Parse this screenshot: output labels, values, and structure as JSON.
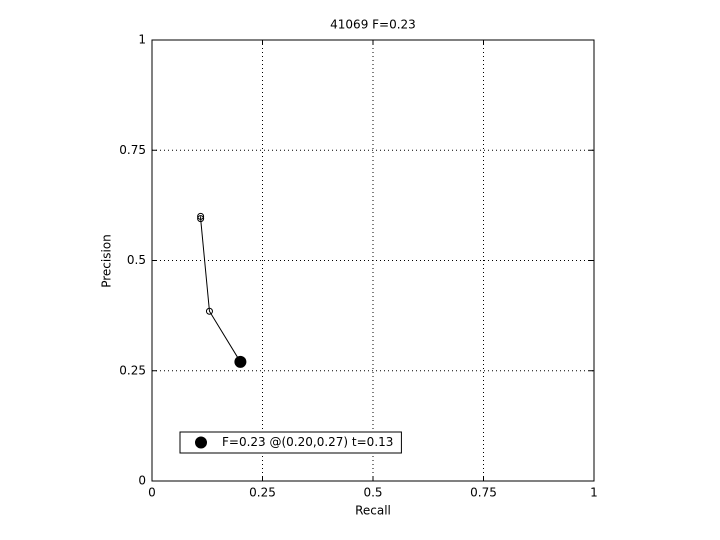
{
  "chart_data": {
    "type": "line",
    "title": "41069 F=0.23",
    "x_label": "Recall",
    "y_label": "Precision",
    "xlim": [
      0,
      1
    ],
    "ylim": [
      0,
      1
    ],
    "xticks": [
      0,
      0.25,
      0.5,
      0.75,
      1
    ],
    "yticks": [
      0,
      0.25,
      0.5,
      0.75,
      1
    ],
    "grid": true,
    "legend_position": "lower-left",
    "series": [
      {
        "color": "#000000",
        "marker": "open-circle",
        "x": [
          0.11,
          0.11,
          0.13,
          0.2
        ],
        "values": [
          0.6,
          0.595,
          0.385,
          0.27
        ]
      },
      {
        "name": "F=0.23 @(0.20,0.27) t=0.13",
        "color": "#000000",
        "marker": "filled-circle",
        "x": [
          0.2
        ],
        "values": [
          0.27
        ]
      }
    ]
  }
}
